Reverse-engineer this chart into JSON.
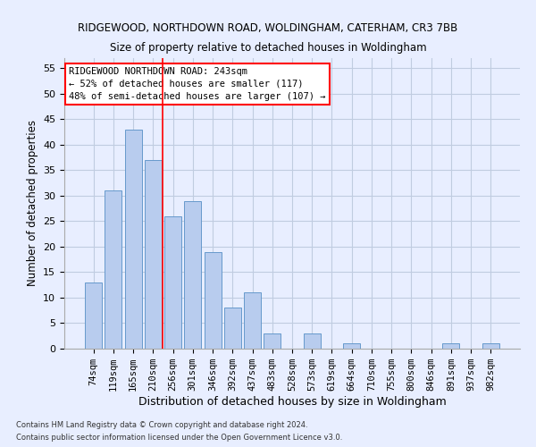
{
  "title1": "RIDGEWOOD, NORTHDOWN ROAD, WOLDINGHAM, CATERHAM, CR3 7BB",
  "title2": "Size of property relative to detached houses in Woldingham",
  "xlabel": "Distribution of detached houses by size in Woldingham",
  "ylabel": "Number of detached properties",
  "categories": [
    "74sqm",
    "119sqm",
    "165sqm",
    "210sqm",
    "256sqm",
    "301sqm",
    "346sqm",
    "392sqm",
    "437sqm",
    "483sqm",
    "528sqm",
    "573sqm",
    "619sqm",
    "664sqm",
    "710sqm",
    "755sqm",
    "800sqm",
    "846sqm",
    "891sqm",
    "937sqm",
    "982sqm"
  ],
  "values": [
    13,
    31,
    43,
    37,
    26,
    29,
    19,
    8,
    11,
    3,
    0,
    3,
    0,
    1,
    0,
    0,
    0,
    0,
    1,
    0,
    1
  ],
  "bar_color": "#b8ccee",
  "bar_edge_color": "#6699cc",
  "vline_x_index": 3.5,
  "vline_color": "red",
  "annotation_line1": "RIDGEWOOD NORTHDOWN ROAD: 243sqm",
  "annotation_line2": "← 52% of detached houses are smaller (117)",
  "annotation_line3": "48% of semi-detached houses are larger (107) →",
  "annotation_box_color": "white",
  "annotation_box_edge_color": "red",
  "ylim": [
    0,
    57
  ],
  "yticks": [
    0,
    5,
    10,
    15,
    20,
    25,
    30,
    35,
    40,
    45,
    50,
    55
  ],
  "footer1": "Contains HM Land Registry data © Crown copyright and database right 2024.",
  "footer2": "Contains public sector information licensed under the Open Government Licence v3.0.",
  "bg_color": "#e8eeff",
  "grid_color": "#c0cce0"
}
